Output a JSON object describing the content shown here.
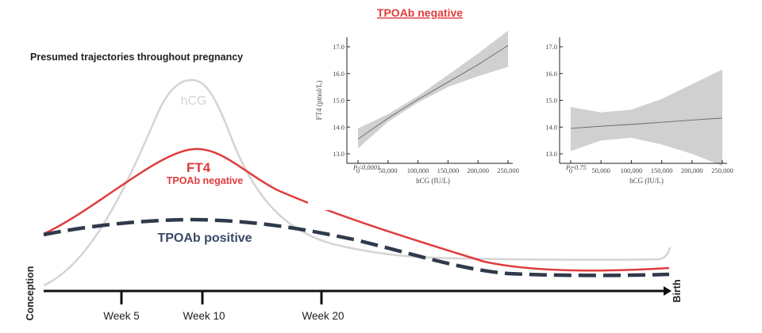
{
  "chart_data": [
    {
      "type": "line",
      "title": "Presumed trajectories throughout pregnancy",
      "x_axis": {
        "start_label": "Conception",
        "end_label": "Birth",
        "ticks": [
          {
            "week": 5,
            "label": "Week 5"
          },
          {
            "week": 10,
            "label": "Week 10"
          },
          {
            "week": 20,
            "label": "Week 20"
          }
        ]
      },
      "series": [
        {
          "name": "hCG",
          "label": "hCG",
          "color": "#d4d4d4",
          "style": "solid"
        },
        {
          "name": "FT4 TPOAb negative",
          "label": "FT4",
          "sublabel": "TPOAb negative",
          "color": "#e03c3c",
          "style": "solid"
        },
        {
          "name": "TPOAb positive",
          "label": "TPOAb positive",
          "color": "#2f3a4c",
          "style": "dashed"
        }
      ]
    },
    {
      "type": "line",
      "title": "TPOAb negative",
      "title_color": "#e03c3c",
      "xlabel": "hCG (IU/L)",
      "ylabel": "FT4 (pmol/L)",
      "xlim": [
        0,
        250000
      ],
      "ylim": [
        13.0,
        17.0
      ],
      "x_ticks": [
        0,
        50000,
        100000,
        150000,
        200000,
        250000
      ],
      "x_tick_labels": [
        "0",
        "50,000",
        "100,000",
        "150,000",
        "200,000",
        "250,000"
      ],
      "y_ticks": [
        13.0,
        14.0,
        15.0,
        16.0,
        17.0
      ],
      "y_tick_labels": [
        "13.0",
        "14.0",
        "15.0",
        "16.0",
        "17.0"
      ],
      "annotation": "P<0.0001",
      "x": [
        0,
        50000,
        100000,
        150000,
        200000,
        250000
      ],
      "y": [
        13.55,
        14.33,
        15.03,
        15.68,
        16.33,
        17.05
      ],
      "ci_lower": [
        13.2,
        14.2,
        14.92,
        15.5,
        15.9,
        16.25
      ],
      "ci_upper": [
        13.95,
        14.48,
        15.16,
        15.95,
        16.75,
        17.6
      ]
    },
    {
      "type": "line",
      "title": "",
      "xlabel": "hCG (IU/L)",
      "ylabel": "",
      "xlim": [
        0,
        250000
      ],
      "ylim": [
        13.0,
        17.0
      ],
      "x_ticks": [
        0,
        50000,
        100000,
        150000,
        200000,
        250000
      ],
      "x_tick_labels": [
        "0",
        "50,000",
        "100,000",
        "150,000",
        "200,000",
        "250,000"
      ],
      "y_ticks": [
        13.0,
        14.0,
        15.0,
        16.0,
        17.0
      ],
      "y_tick_labels": [
        "13.0",
        "14.0",
        "15.0",
        "16.0",
        "17.0"
      ],
      "annotation": "P=0.75",
      "x": [
        0,
        50000,
        100000,
        150000,
        200000,
        250000
      ],
      "y": [
        13.95,
        14.03,
        14.1,
        14.18,
        14.26,
        14.34
      ],
      "ci_lower": [
        13.1,
        13.5,
        13.6,
        13.35,
        13.0,
        12.55
      ],
      "ci_upper": [
        14.75,
        14.55,
        14.65,
        15.05,
        15.6,
        16.15
      ]
    }
  ]
}
